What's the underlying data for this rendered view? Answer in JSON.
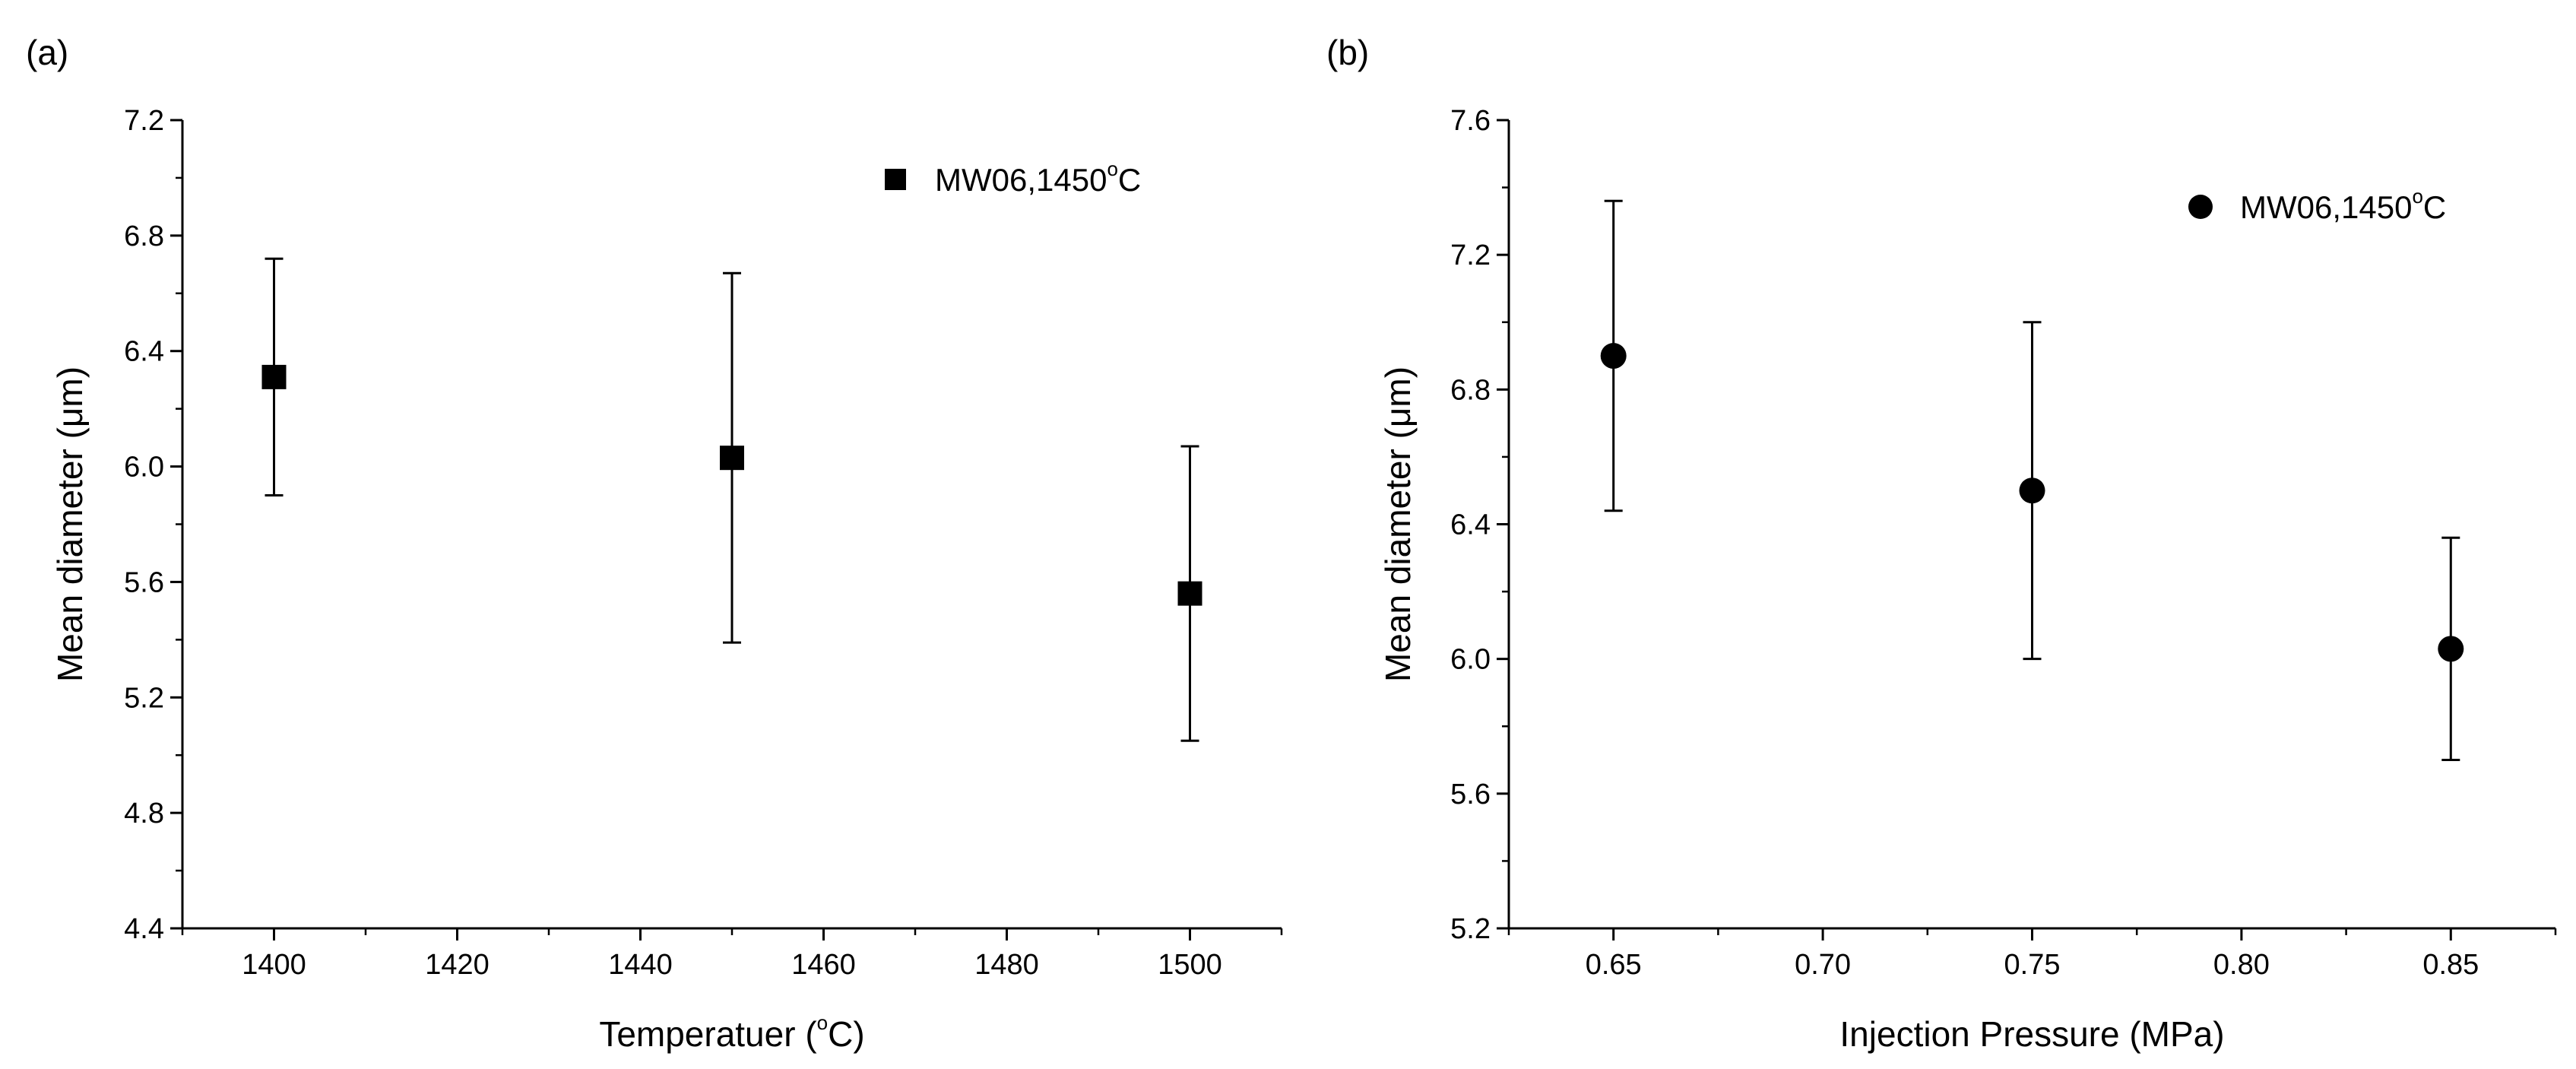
{
  "chart_data": [
    {
      "id": "a",
      "type": "scatter",
      "panel_label": "(a)",
      "title": "",
      "xlabel_prefix": "Temperatuer (",
      "xlabel_sup": "o",
      "xlabel_suffix": "C)",
      "ylabel": "Mean diameter (μm)",
      "xlim": [
        1390,
        1510
      ],
      "ylim": [
        4.4,
        7.2
      ],
      "xticks": [
        1400,
        1420,
        1440,
        1460,
        1480,
        1500
      ],
      "xtick_labels": [
        "1400",
        "1420",
        "1440",
        "1460",
        "1480",
        "1500"
      ],
      "yticks": [
        4.4,
        4.8,
        5.2,
        5.6,
        6.0,
        6.4,
        6.8,
        7.2
      ],
      "ytick_labels": [
        "4.4",
        "4.8",
        "5.2",
        "5.6",
        "6.0",
        "6.4",
        "6.8",
        "7.2"
      ],
      "marker": "square",
      "series": [
        {
          "name": "MW06,1450°C",
          "x": [
            1400,
            1450,
            1500
          ],
          "y": [
            6.31,
            6.03,
            5.56
          ],
          "err_low": [
            5.9,
            5.39,
            5.05
          ],
          "err_high": [
            6.72,
            6.67,
            6.07
          ]
        }
      ],
      "legend": {
        "text_prefix": "MW06,1450",
        "text_sup": "o",
        "text_suffix": "C",
        "position": "top-right"
      },
      "grid": false
    },
    {
      "id": "b",
      "type": "scatter",
      "panel_label": "(b)",
      "title": "",
      "xlabel": "Injection Pressure (MPa)",
      "ylabel": "Mean diameter (μm)",
      "xlim": [
        0.625,
        0.875
      ],
      "ylim": [
        5.2,
        7.6
      ],
      "xticks": [
        0.65,
        0.7,
        0.75,
        0.8,
        0.85
      ],
      "xtick_labels": [
        "0.65",
        "0.70",
        "0.75",
        "0.80",
        "0.85"
      ],
      "yticks": [
        5.2,
        5.6,
        6.0,
        6.4,
        6.8,
        7.2,
        7.6
      ],
      "ytick_labels": [
        "5.2",
        "5.6",
        "6.0",
        "6.4",
        "6.8",
        "7.2",
        "7.6"
      ],
      "marker": "circle",
      "series": [
        {
          "name": "MW06,1450°C",
          "x": [
            0.65,
            0.75,
            0.85
          ],
          "y": [
            6.9,
            6.5,
            6.03
          ],
          "err_low": [
            6.44,
            6.0,
            5.7
          ],
          "err_high": [
            7.36,
            7.0,
            6.36
          ]
        }
      ],
      "legend": {
        "text_prefix": "MW06,1450",
        "text_sup": "o",
        "text_suffix": "C",
        "position": "top-right"
      },
      "grid": false
    }
  ]
}
